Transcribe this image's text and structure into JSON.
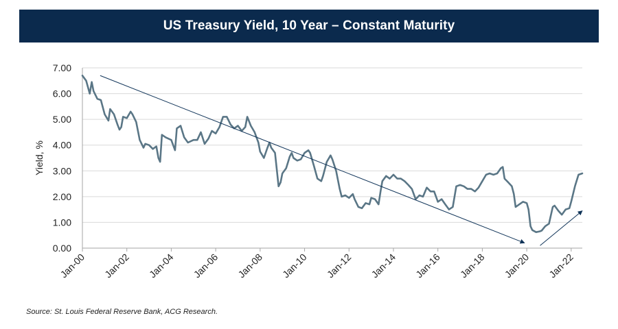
{
  "colors": {
    "title_bg": "#0b2a4d",
    "series": "#5a7686",
    "trend": "#0f3358",
    "grid": "#d9d9d9"
  },
  "source_note": "Source: St. Louis Federal Reserve Bank, ACG Research.",
  "chart_data": {
    "type": "line",
    "title": "US Treasury Yield, 10 Year – Constant Maturity",
    "xlabel": "",
    "ylabel": "Yield, %",
    "ylim": [
      0,
      7
    ],
    "yticks": [
      "0.00",
      "1.00",
      "2.00",
      "3.00",
      "4.00",
      "5.00",
      "6.00",
      "7.00"
    ],
    "xlim": [
      2000.0,
      2022.5
    ],
    "xticks": [
      {
        "label": "Jan-00",
        "x": 2000
      },
      {
        "label": "Jan-02",
        "x": 2002
      },
      {
        "label": "Jan-04",
        "x": 2004
      },
      {
        "label": "Jan-06",
        "x": 2006
      },
      {
        "label": "Jan-08",
        "x": 2008
      },
      {
        "label": "Jan-10",
        "x": 2010
      },
      {
        "label": "Jan-12",
        "x": 2012
      },
      {
        "label": "Jan-14",
        "x": 2014
      },
      {
        "label": "Jan-16",
        "x": 2016
      },
      {
        "label": "Jan-18",
        "x": 2018
      },
      {
        "label": "Jan-20",
        "x": 2020
      },
      {
        "label": "Jan-22",
        "x": 2022
      }
    ],
    "grid": true,
    "series": [
      {
        "name": "10-Year Treasury Yield",
        "x": [
          2000.0,
          2000.17,
          2000.33,
          2000.42,
          2000.5,
          2000.67,
          2000.83,
          2001.0,
          2001.17,
          2001.25,
          2001.42,
          2001.58,
          2001.67,
          2001.75,
          2001.83,
          2002.0,
          2002.17,
          2002.25,
          2002.42,
          2002.58,
          2002.75,
          2002.83,
          2003.0,
          2003.17,
          2003.33,
          2003.42,
          2003.5,
          2003.58,
          2003.75,
          2004.0,
          2004.17,
          2004.25,
          2004.42,
          2004.58,
          2004.75,
          2005.0,
          2005.17,
          2005.33,
          2005.5,
          2005.67,
          2005.83,
          2006.0,
          2006.17,
          2006.33,
          2006.5,
          2006.67,
          2006.83,
          2007.0,
          2007.17,
          2007.33,
          2007.42,
          2007.58,
          2007.75,
          2007.92,
          2008.0,
          2008.17,
          2008.33,
          2008.42,
          2008.5,
          2008.67,
          2008.83,
          2008.92,
          2009.0,
          2009.17,
          2009.33,
          2009.42,
          2009.5,
          2009.67,
          2009.83,
          2010.0,
          2010.17,
          2010.25,
          2010.42,
          2010.58,
          2010.75,
          2010.83,
          2011.0,
          2011.17,
          2011.25,
          2011.42,
          2011.58,
          2011.67,
          2011.83,
          2012.0,
          2012.17,
          2012.25,
          2012.42,
          2012.58,
          2012.75,
          2012.92,
          2013.0,
          2013.17,
          2013.33,
          2013.42,
          2013.5,
          2013.67,
          2013.83,
          2014.0,
          2014.17,
          2014.33,
          2014.5,
          2014.67,
          2014.83,
          2015.0,
          2015.17,
          2015.33,
          2015.5,
          2015.67,
          2015.83,
          2016.0,
          2016.17,
          2016.33,
          2016.5,
          2016.67,
          2016.83,
          2017.0,
          2017.17,
          2017.33,
          2017.5,
          2017.67,
          2017.83,
          2018.0,
          2018.17,
          2018.33,
          2018.5,
          2018.67,
          2018.83,
          2018.92,
          2019.0,
          2019.17,
          2019.33,
          2019.42,
          2019.5,
          2019.67,
          2019.83,
          2020.0,
          2020.08,
          2020.17,
          2020.25,
          2020.42,
          2020.58,
          2020.67,
          2020.83,
          2021.0,
          2021.17,
          2021.25,
          2021.42,
          2021.58,
          2021.75,
          2021.92,
          2022.0,
          2022.17,
          2022.33,
          2022.5
        ],
        "values": [
          6.7,
          6.5,
          6.0,
          6.45,
          6.1,
          5.8,
          5.75,
          5.2,
          4.95,
          5.4,
          5.2,
          4.8,
          4.6,
          4.7,
          5.1,
          5.05,
          5.3,
          5.2,
          4.9,
          4.2,
          3.9,
          4.05,
          4.0,
          3.85,
          3.95,
          3.5,
          3.35,
          4.4,
          4.3,
          4.2,
          3.8,
          4.65,
          4.75,
          4.3,
          4.1,
          4.2,
          4.2,
          4.5,
          4.05,
          4.25,
          4.55,
          4.45,
          4.7,
          5.1,
          5.1,
          4.8,
          4.65,
          4.75,
          4.55,
          4.7,
          5.1,
          4.75,
          4.5,
          4.1,
          3.75,
          3.5,
          3.9,
          4.1,
          3.9,
          3.7,
          2.4,
          2.55,
          2.9,
          3.1,
          3.55,
          3.7,
          3.5,
          3.4,
          3.45,
          3.7,
          3.8,
          3.7,
          3.2,
          2.7,
          2.6,
          2.8,
          3.35,
          3.6,
          3.45,
          3.0,
          2.3,
          2.0,
          2.05,
          1.95,
          2.1,
          1.9,
          1.6,
          1.55,
          1.75,
          1.7,
          1.95,
          1.9,
          1.7,
          2.2,
          2.6,
          2.8,
          2.7,
          2.85,
          2.7,
          2.7,
          2.6,
          2.45,
          2.3,
          1.9,
          2.05,
          2.0,
          2.35,
          2.2,
          2.2,
          1.8,
          1.9,
          1.7,
          1.5,
          1.6,
          2.4,
          2.45,
          2.4,
          2.3,
          2.3,
          2.2,
          2.35,
          2.6,
          2.85,
          2.9,
          2.85,
          2.9,
          3.1,
          3.15,
          2.7,
          2.55,
          2.4,
          2.1,
          1.6,
          1.7,
          1.8,
          1.75,
          1.5,
          0.85,
          0.7,
          0.62,
          0.65,
          0.68,
          0.85,
          0.95,
          1.6,
          1.65,
          1.45,
          1.3,
          1.5,
          1.55,
          1.8,
          2.4,
          2.85,
          2.9
        ]
      }
    ],
    "annotations": [
      {
        "name": "downtrend-arrow",
        "from": [
          2000.8,
          6.7
        ],
        "to": [
          2019.9,
          0.2
        ]
      },
      {
        "name": "uptrend-arrow",
        "from": [
          2020.6,
          0.1
        ],
        "to": [
          2022.5,
          1.45
        ]
      }
    ]
  }
}
